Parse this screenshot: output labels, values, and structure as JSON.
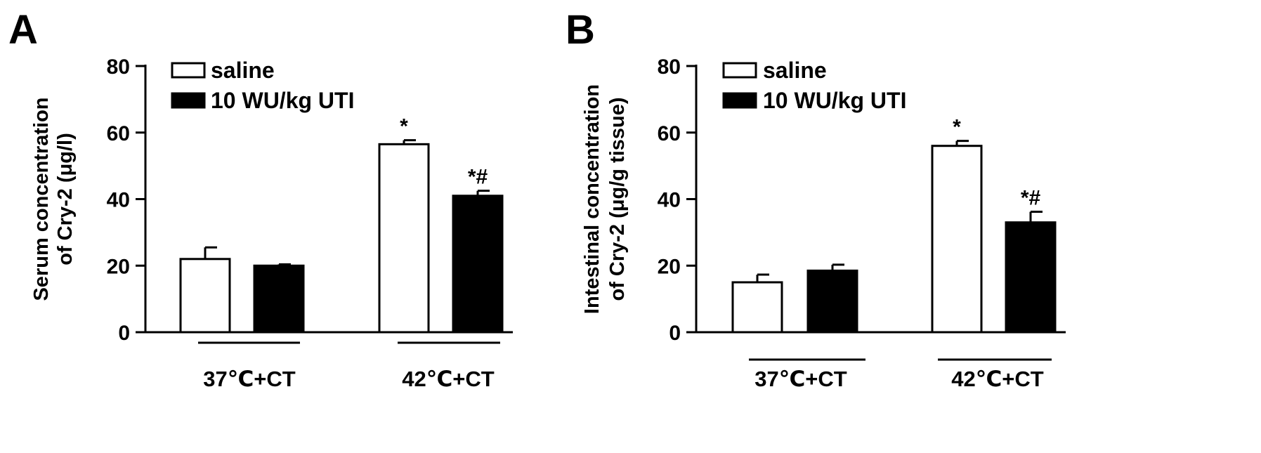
{
  "chart_data": [
    {
      "type": "bar",
      "panel_label": "A",
      "ylabel_lines": [
        "Serum concentration",
        "of Cry-2 (μg/l)"
      ],
      "xlabel": "",
      "ylim": [
        0,
        80
      ],
      "yticks": [
        0,
        20,
        40,
        60,
        80
      ],
      "grid": false,
      "legend_placement": "top-left",
      "categories": [
        "37℃+CT",
        "42℃+CT"
      ],
      "series": [
        {
          "name": "saline",
          "fill": "#ffffff",
          "values": [
            22,
            56.5
          ],
          "errors": [
            3.5,
            1.2
          ],
          "significance": [
            "",
            "*"
          ]
        },
        {
          "name": "10 WU/kg UTI",
          "fill": "#000000",
          "values": [
            20,
            41
          ],
          "errors": [
            0.4,
            1.5
          ],
          "significance": [
            "",
            "*#"
          ]
        }
      ]
    },
    {
      "type": "bar",
      "panel_label": "B",
      "ylabel_lines": [
        "Intestinal concentration",
        "of Cry-2 (μg/g tissue)"
      ],
      "xlabel": "",
      "ylim": [
        0,
        80
      ],
      "yticks": [
        0,
        20,
        40,
        60,
        80
      ],
      "grid": false,
      "legend_placement": "top-left",
      "categories": [
        "37℃+CT",
        "42℃+CT"
      ],
      "series": [
        {
          "name": "saline",
          "fill": "#ffffff",
          "values": [
            15,
            56
          ],
          "errors": [
            2.3,
            1.5
          ],
          "significance": [
            "",
            "*"
          ]
        },
        {
          "name": "10 WU/kg UTI",
          "fill": "#000000",
          "values": [
            18.5,
            33
          ],
          "errors": [
            1.8,
            3.2
          ],
          "significance": [
            "",
            "*#"
          ]
        }
      ]
    }
  ]
}
